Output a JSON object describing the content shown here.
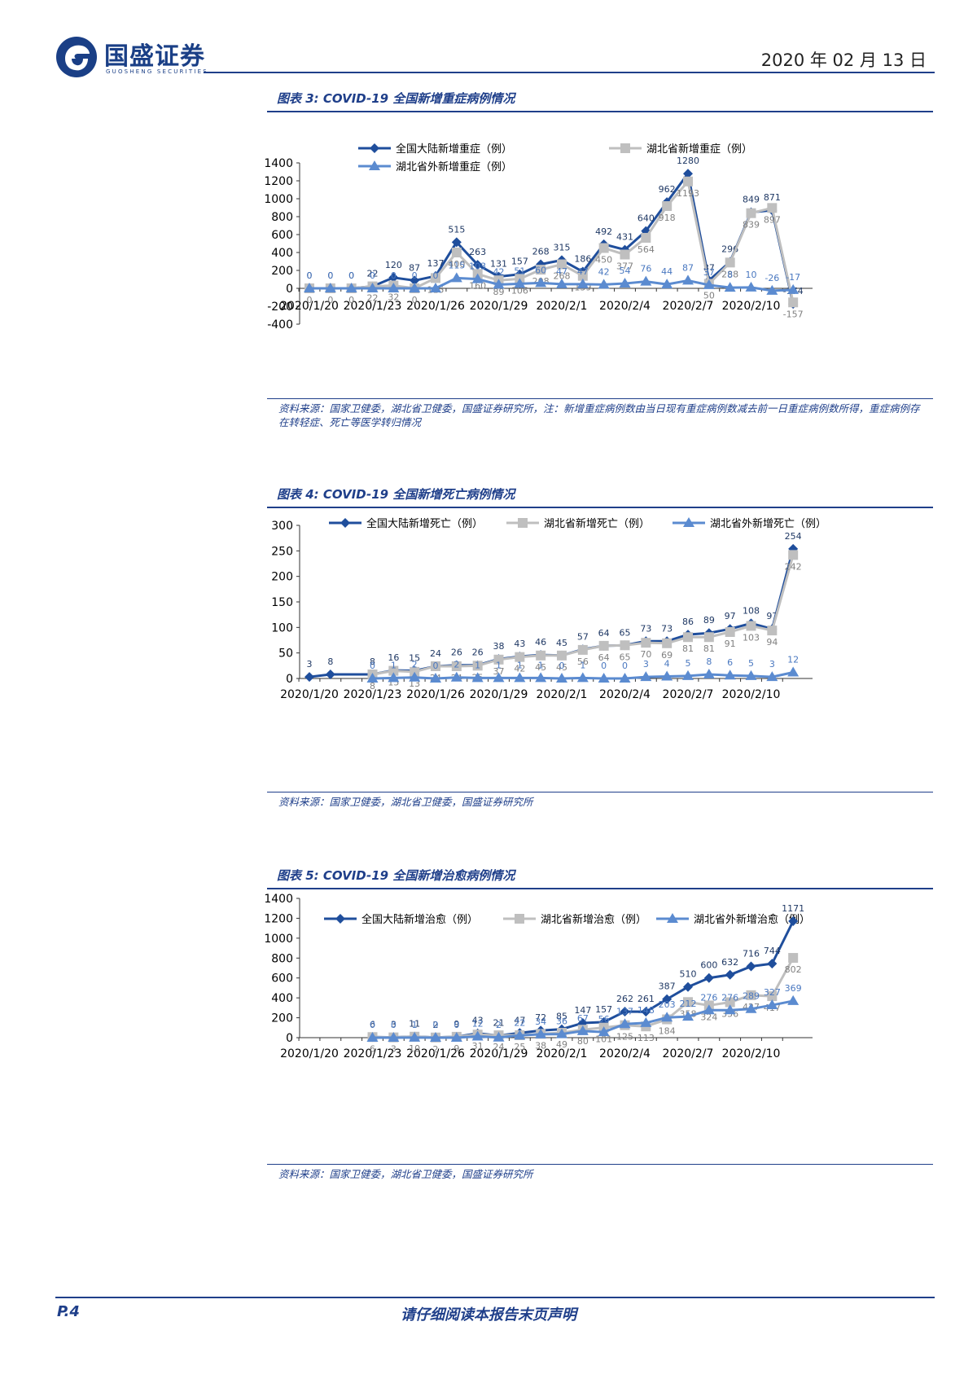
{
  "header": {
    "company_cn": "国盛证券",
    "company_en": "GUOSHENG SECURITIES",
    "date": "2020 年 02 月 13 日"
  },
  "footer": {
    "page": "P.4",
    "disclaimer": "请仔细阅读本报告末页声明"
  },
  "figures": [
    {
      "title": "图表 3:  COVID-19 全国新增重症病例情况",
      "source": "资料来源：国家卫健委，湖北省卫健委，国盛证券研究所，注：新增重症病例数由当日现有重症病例数减去前一日重症病例数所得，重症病例存在转轻症、死亡等医学转归情况"
    },
    {
      "title": "图表 4:  COVID-19 全国新增死亡病例情况",
      "source": "资料来源：国家卫健委，湖北省卫健委，国盛证券研究所"
    },
    {
      "title": "图表 5:  COVID-19 全国新增治愈病例情况",
      "source": "资料来源：国家卫健委，湖北省卫健委，国盛证券研究所"
    }
  ],
  "chart_data": [
    {
      "type": "line",
      "title": "COVID-19 全国新增重症病例情况",
      "categories": [
        "2020/1/20",
        "2020/1/21",
        "2020/1/22",
        "2020/1/23",
        "2020/1/24",
        "2020/1/25",
        "2020/1/26",
        "2020/1/27",
        "2020/1/28",
        "2020/1/29",
        "2020/1/30",
        "2020/1/31",
        "2020/2/1",
        "2020/2/2",
        "2020/2/3",
        "2020/2/4",
        "2020/2/5",
        "2020/2/6",
        "2020/2/7",
        "2020/2/8",
        "2020/2/9",
        "2020/2/10",
        "2020/2/11",
        "2020/2/12"
      ],
      "tick_labels": [
        "2020/1/20",
        "2020/1/23",
        "2020/1/26",
        "2020/1/29",
        "2020/2/1",
        "2020/2/4",
        "2020/2/7",
        "2020/2/10"
      ],
      "ylim": [
        -400,
        1400
      ],
      "yticks": [
        "1400",
        "1200",
        "1000",
        "800",
        "600",
        "400",
        "200",
        "0",
        "-200",
        "-400"
      ],
      "legend_position": "top",
      "series": [
        {
          "name": "全国大陆新增重症（例）",
          "color": "#1f4e9c",
          "marker": "diamond",
          "values": [
            0,
            0,
            0,
            22,
            120,
            87,
            137,
            515,
            263,
            131,
            157,
            268,
            315,
            186,
            492,
            431,
            640,
            962,
            1280,
            87,
            296,
            849,
            871,
            -174
          ]
        },
        {
          "name": "湖北省新增重症（例）",
          "color": "#bfbfbf",
          "marker": "square",
          "values": [
            0,
            0,
            0,
            22,
            32,
            0,
            115,
            400,
            160,
            89,
            106,
            208,
            268,
            139,
            450,
            377,
            564,
            918,
            1193,
            50,
            288,
            839,
            897,
            -157
          ]
        },
        {
          "name": "湖北省外新增重症（例）",
          "color": "#5b8bd0",
          "marker": "triangle",
          "values": [
            0,
            0,
            0,
            0,
            0,
            0,
            0,
            115,
            103,
            42,
            51,
            60,
            47,
            47,
            42,
            54,
            76,
            44,
            87,
            37,
            8,
            10,
            -26,
            -17
          ]
        }
      ]
    },
    {
      "type": "line",
      "title": "COVID-19 全国新增死亡病例情况",
      "categories": [
        "2020/1/20",
        "2020/1/21",
        "2020/1/22",
        "2020/1/23",
        "2020/1/24",
        "2020/1/25",
        "2020/1/26",
        "2020/1/27",
        "2020/1/28",
        "2020/1/29",
        "2020/1/30",
        "2020/1/31",
        "2020/2/1",
        "2020/2/2",
        "2020/2/3",
        "2020/2/4",
        "2020/2/5",
        "2020/2/6",
        "2020/2/7",
        "2020/2/8",
        "2020/2/9",
        "2020/2/10",
        "2020/2/11",
        "2020/2/12"
      ],
      "tick_labels": [
        "2020/1/20",
        "2020/1/23",
        "2020/1/26",
        "2020/1/29",
        "2020/2/1",
        "2020/2/4",
        "2020/2/7",
        "2020/2/10"
      ],
      "ylim": [
        0,
        300
      ],
      "yticks": [
        "300",
        "250",
        "200",
        "150",
        "100",
        "50",
        "0"
      ],
      "legend_position": "top",
      "series": [
        {
          "name": "全国大陆新增死亡（例）",
          "color": "#1f4e9c",
          "marker": "diamond",
          "values": [
            3,
            8,
            null,
            8,
            16,
            15,
            24,
            26,
            26,
            38,
            43,
            46,
            45,
            57,
            64,
            65,
            73,
            73,
            86,
            89,
            97,
            108,
            97,
            254
          ]
        },
        {
          "name": "湖北省新增死亡（例）",
          "color": "#bfbfbf",
          "marker": "square",
          "values": [
            null,
            null,
            null,
            8,
            15,
            13,
            24,
            24,
            25,
            37,
            42,
            45,
            45,
            56,
            64,
            65,
            70,
            69,
            81,
            81,
            91,
            103,
            94,
            242
          ]
        },
        {
          "name": "湖北省外新增死亡（例）",
          "color": "#5b8bd0",
          "marker": "triangle",
          "values": [
            null,
            null,
            null,
            0,
            1,
            2,
            0,
            2,
            1,
            1,
            1,
            1,
            0,
            1,
            0,
            0,
            3,
            4,
            5,
            8,
            6,
            5,
            3,
            12
          ]
        }
      ]
    },
    {
      "type": "line",
      "title": "COVID-19 全国新增治愈病例情况",
      "categories": [
        "2020/1/20",
        "2020/1/21",
        "2020/1/22",
        "2020/1/23",
        "2020/1/24",
        "2020/1/25",
        "2020/1/26",
        "2020/1/27",
        "2020/1/28",
        "2020/1/29",
        "2020/1/30",
        "2020/1/31",
        "2020/2/1",
        "2020/2/2",
        "2020/2/3",
        "2020/2/4",
        "2020/2/5",
        "2020/2/6",
        "2020/2/7",
        "2020/2/8",
        "2020/2/9",
        "2020/2/10",
        "2020/2/11",
        "2020/2/12"
      ],
      "tick_labels": [
        "2020/1/20",
        "2020/1/23",
        "2020/1/26",
        "2020/1/29",
        "2020/2/1",
        "2020/2/4",
        "2020/2/7",
        "2020/2/10"
      ],
      "ylim": [
        0,
        1400
      ],
      "yticks": [
        "1400",
        "1200",
        "1000",
        "800",
        "600",
        "400",
        "200",
        "0"
      ],
      "legend_position": "top",
      "series": [
        {
          "name": "全国大陆新增治愈（例）",
          "color": "#1f4e9c",
          "marker": "diamond",
          "values": [
            null,
            null,
            null,
            6,
            3,
            11,
            2,
            9,
            43,
            21,
            47,
            72,
            85,
            147,
            157,
            262,
            261,
            387,
            510,
            600,
            632,
            716,
            744,
            1171
          ]
        },
        {
          "name": "湖北省新增治愈（例）",
          "color": "#bfbfbf",
          "marker": "square",
          "values": [
            null,
            null,
            null,
            6,
            3,
            10,
            2,
            9,
            31,
            24,
            25,
            38,
            49,
            80,
            101,
            125,
            113,
            184,
            358,
            324,
            356,
            427,
            417,
            802
          ]
        },
        {
          "name": "湖北省外新增治愈（例）",
          "color": "#5b8bd0",
          "marker": "triangle",
          "values": [
            null,
            null,
            null,
            0,
            0,
            1,
            0,
            0,
            12,
            2,
            22,
            34,
            36,
            67,
            56,
            137,
            148,
            203,
            212,
            276,
            276,
            289,
            327,
            369
          ]
        }
      ]
    }
  ]
}
